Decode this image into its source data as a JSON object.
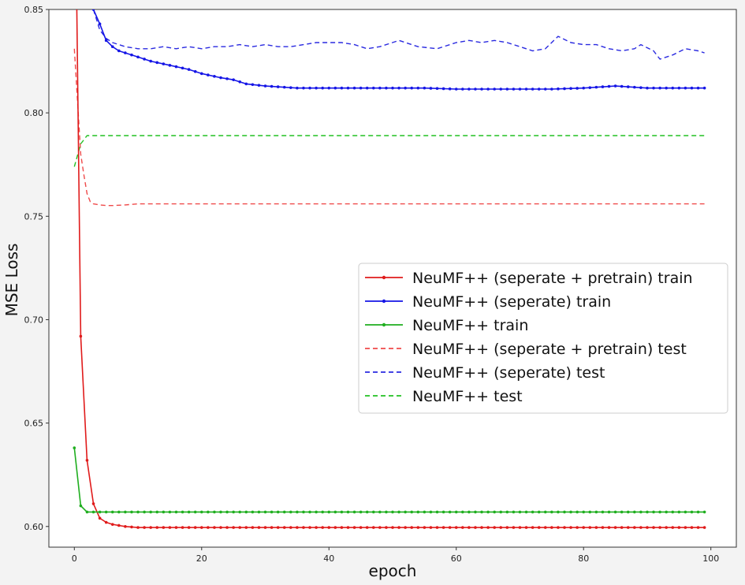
{
  "chart_data": {
    "type": "line",
    "title": "",
    "xlabel": "epoch",
    "ylabel": "MSE Loss",
    "xlim": [
      -4,
      104
    ],
    "ylim": [
      0.59,
      0.85
    ],
    "xticks": [
      0,
      20,
      40,
      60,
      80,
      100
    ],
    "xtick_labels": [
      "0",
      "20",
      "40",
      "60",
      "80",
      "100"
    ],
    "yticks": [
      0.6,
      0.65,
      0.7,
      0.75,
      0.8,
      0.85
    ],
    "ytick_labels": [
      "0.60",
      "0.65",
      "0.70",
      "0.75",
      "0.80",
      "0.85"
    ],
    "legend_position": "center-right",
    "series": [
      {
        "name": "NeuMF++ (seperate + pretrain) train",
        "color": "#e01b1b",
        "style": "solid-marker",
        "x": [
          0,
          1,
          2,
          3,
          4,
          5,
          6,
          7,
          8,
          10,
          15,
          20,
          30,
          40,
          50,
          60,
          70,
          80,
          90,
          99
        ],
        "y": [
          0.95,
          0.692,
          0.632,
          0.611,
          0.604,
          0.602,
          0.601,
          0.6005,
          0.6,
          0.5995,
          0.5995,
          0.5995,
          0.5995,
          0.5995,
          0.5995,
          0.5995,
          0.5995,
          0.5995,
          0.5995,
          0.5995
        ]
      },
      {
        "name": "NeuMF++ (seperate) train",
        "color": "#1515e6",
        "style": "solid-marker",
        "x": [
          3,
          4,
          5,
          6,
          7,
          8,
          10,
          12,
          15,
          18,
          20,
          23,
          25,
          27,
          30,
          35,
          40,
          45,
          50,
          55,
          60,
          65,
          70,
          75,
          80,
          85,
          90,
          95,
          99
        ],
        "y": [
          0.85,
          0.843,
          0.835,
          0.832,
          0.83,
          0.829,
          0.827,
          0.825,
          0.823,
          0.821,
          0.819,
          0.817,
          0.816,
          0.814,
          0.813,
          0.812,
          0.812,
          0.812,
          0.812,
          0.812,
          0.8115,
          0.8115,
          0.8115,
          0.8115,
          0.812,
          0.813,
          0.812,
          0.812,
          0.812
        ]
      },
      {
        "name": "NeuMF++ train",
        "color": "#1fae1f",
        "style": "solid-marker",
        "x": [
          0,
          1,
          2,
          3,
          5,
          10,
          20,
          30,
          40,
          50,
          60,
          70,
          80,
          90,
          99
        ],
        "y": [
          0.638,
          0.61,
          0.607,
          0.607,
          0.607,
          0.607,
          0.607,
          0.607,
          0.607,
          0.607,
          0.607,
          0.607,
          0.607,
          0.607,
          0.607
        ]
      },
      {
        "name": "NeuMF++ (seperate + pretrain) test",
        "color": "#ef4a4a",
        "style": "dashed",
        "x": [
          0,
          1,
          1.5,
          2,
          2.5,
          3,
          4,
          5,
          6,
          8,
          10,
          15,
          20,
          40,
          60,
          80,
          99
        ],
        "y": [
          0.831,
          0.78,
          0.77,
          0.761,
          0.757,
          0.756,
          0.7555,
          0.7552,
          0.7552,
          0.7555,
          0.756,
          0.756,
          0.756,
          0.756,
          0.756,
          0.756,
          0.756
        ]
      },
      {
        "name": "NeuMF++ (seperate) test",
        "color": "#2a2ae0",
        "style": "dashed",
        "x": [
          3,
          4,
          5,
          6,
          8,
          10,
          12,
          14,
          16,
          18,
          20,
          22,
          24,
          26,
          28,
          30,
          32,
          34,
          36,
          38,
          40,
          42,
          44,
          46,
          48,
          51,
          54,
          57,
          60,
          62,
          64,
          66,
          68,
          70,
          72,
          74,
          76,
          78,
          80,
          82,
          84,
          86,
          88,
          89,
          91,
          92,
          94,
          96,
          98,
          99
        ],
        "y": [
          0.85,
          0.84,
          0.836,
          0.834,
          0.832,
          0.831,
          0.831,
          0.832,
          0.831,
          0.832,
          0.831,
          0.832,
          0.832,
          0.833,
          0.832,
          0.833,
          0.832,
          0.832,
          0.833,
          0.834,
          0.834,
          0.834,
          0.833,
          0.831,
          0.832,
          0.835,
          0.832,
          0.831,
          0.834,
          0.835,
          0.834,
          0.835,
          0.834,
          0.832,
          0.83,
          0.831,
          0.837,
          0.834,
          0.833,
          0.833,
          0.831,
          0.83,
          0.831,
          0.833,
          0.83,
          0.826,
          0.828,
          0.831,
          0.83,
          0.829
        ]
      },
      {
        "name": "NeuMF++ test",
        "color": "#22c022",
        "style": "dashed",
        "x": [
          0,
          1,
          2,
          3,
          5,
          10,
          20,
          40,
          60,
          80,
          99
        ],
        "y": [
          0.774,
          0.785,
          0.789,
          0.789,
          0.789,
          0.789,
          0.789,
          0.789,
          0.789,
          0.789,
          0.789
        ]
      }
    ]
  }
}
